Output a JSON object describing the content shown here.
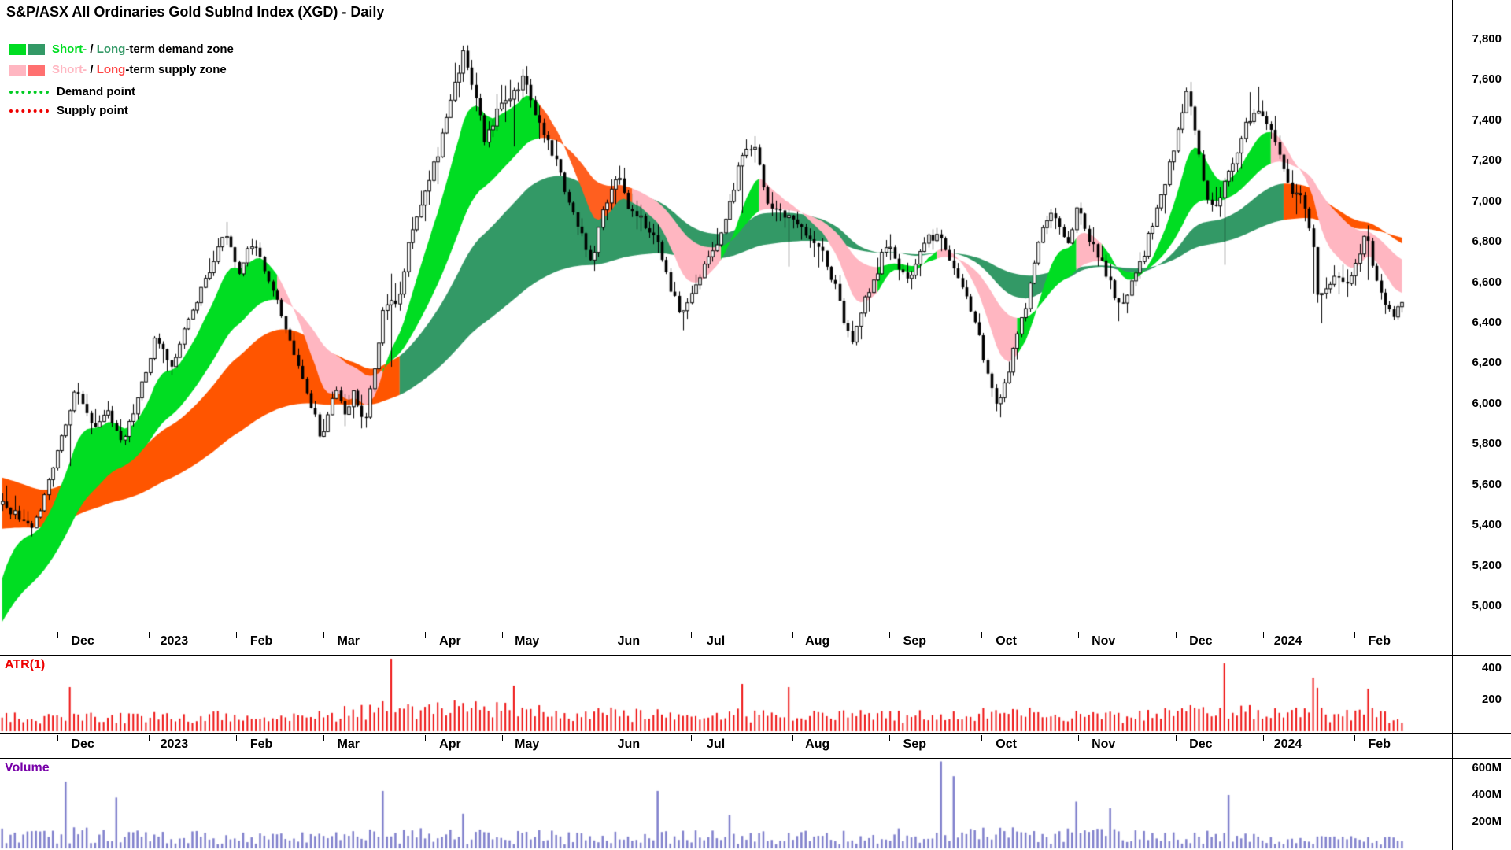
{
  "legend": {
    "demand": {
      "short": "Short-",
      "sep": " / ",
      "long": "Long",
      "rest": "-term demand zone"
    },
    "supply": {
      "short": "Short-",
      "sep": " / ",
      "long": "Long",
      "rest": "-term supply zone"
    },
    "demand_point": "Demand point",
    "supply_point": "Supply point"
  },
  "chart_data": {
    "type": "candlestick",
    "title": "S&P/ASX All Ordinaries Gold SubInd Index (XGD) - Daily",
    "panels": {
      "atr_label": "ATR(1)",
      "volume_label": "Volume"
    },
    "x_labels": [
      {
        "label": "Dec",
        "pos": 0.057
      },
      {
        "label": "2023",
        "pos": 0.12
      },
      {
        "label": "Feb",
        "pos": 0.18
      },
      {
        "label": "Mar",
        "pos": 0.24
      },
      {
        "label": "Apr",
        "pos": 0.31
      },
      {
        "label": "May",
        "pos": 0.363
      },
      {
        "label": "Jun",
        "pos": 0.433
      },
      {
        "label": "Jul",
        "pos": 0.493
      },
      {
        "label": "Aug",
        "pos": 0.563
      },
      {
        "label": "Sep",
        "pos": 0.63
      },
      {
        "label": "Oct",
        "pos": 0.693
      },
      {
        "label": "Nov",
        "pos": 0.76
      },
      {
        "label": "Dec",
        "pos": 0.827
      },
      {
        "label": "2024",
        "pos": 0.887
      },
      {
        "label": "Feb",
        "pos": 0.95
      }
    ],
    "y_axis": {
      "min": 5000,
      "max": 7800,
      "step": 200,
      "ticks": [
        {
          "v": 7800,
          "label": "7,800"
        },
        {
          "v": 7600,
          "label": "7,600"
        },
        {
          "v": 7400,
          "label": "7,400"
        },
        {
          "v": 7200,
          "label": "7,200"
        },
        {
          "v": 7000,
          "label": "7,000"
        },
        {
          "v": 6800,
          "label": "6,800"
        },
        {
          "v": 6600,
          "label": "6,600"
        },
        {
          "v": 6400,
          "label": "6,400"
        },
        {
          "v": 6200,
          "label": "6,200"
        },
        {
          "v": 6000,
          "label": "6,000"
        },
        {
          "v": 5800,
          "label": "5,800"
        },
        {
          "v": 5600,
          "label": "5,600"
        },
        {
          "v": 5400,
          "label": "5,400"
        },
        {
          "v": 5200,
          "label": "5,200"
        },
        {
          "v": 5000,
          "label": "5,000"
        }
      ]
    },
    "atr_ticks": [
      {
        "v": 400,
        "label": "400"
      },
      {
        "v": 200,
        "label": "200"
      }
    ],
    "volume_ticks": [
      {
        "v": 600,
        "label": "600M"
      },
      {
        "v": 400,
        "label": "400M"
      },
      {
        "v": 200,
        "label": "200M"
      }
    ],
    "bars": 332,
    "seed": 20240217,
    "data_extent": 0.967,
    "price_anchors": [
      [
        0,
        5500
      ],
      [
        0.014,
        5430
      ],
      [
        0.021,
        5380
      ],
      [
        0.031,
        5560
      ],
      [
        0.041,
        5800
      ],
      [
        0.052,
        6060
      ],
      [
        0.066,
        5880
      ],
      [
        0.076,
        5960
      ],
      [
        0.086,
        5800
      ],
      [
        0.1,
        6100
      ],
      [
        0.11,
        6340
      ],
      [
        0.121,
        6160
      ],
      [
        0.131,
        6400
      ],
      [
        0.148,
        6640
      ],
      [
        0.159,
        6860
      ],
      [
        0.169,
        6650
      ],
      [
        0.178,
        6800
      ],
      [
        0.186,
        6700
      ],
      [
        0.197,
        6500
      ],
      [
        0.207,
        6260
      ],
      [
        0.217,
        6060
      ],
      [
        0.228,
        5830
      ],
      [
        0.238,
        6100
      ],
      [
        0.245,
        5960
      ],
      [
        0.252,
        6060
      ],
      [
        0.259,
        5880
      ],
      [
        0.266,
        6200
      ],
      [
        0.272,
        6460
      ],
      [
        0.283,
        6520
      ],
      [
        0.29,
        6800
      ],
      [
        0.3,
        7000
      ],
      [
        0.31,
        7210
      ],
      [
        0.321,
        7500
      ],
      [
        0.33,
        7730
      ],
      [
        0.338,
        7500
      ],
      [
        0.345,
        7290
      ],
      [
        0.355,
        7450
      ],
      [
        0.366,
        7560
      ],
      [
        0.374,
        7600
      ],
      [
        0.383,
        7390
      ],
      [
        0.392,
        7260
      ],
      [
        0.4,
        7090
      ],
      [
        0.41,
        6880
      ],
      [
        0.421,
        6710
      ],
      [
        0.431,
        7000
      ],
      [
        0.44,
        7110
      ],
      [
        0.448,
        6960
      ],
      [
        0.459,
        6890
      ],
      [
        0.469,
        6790
      ],
      [
        0.479,
        6530
      ],
      [
        0.486,
        6440
      ],
      [
        0.497,
        6620
      ],
      [
        0.507,
        6730
      ],
      [
        0.517,
        6900
      ],
      [
        0.528,
        7240
      ],
      [
        0.537,
        7290
      ],
      [
        0.545,
        7010
      ],
      [
        0.555,
        6940
      ],
      [
        0.566,
        6890
      ],
      [
        0.576,
        6840
      ],
      [
        0.586,
        6740
      ],
      [
        0.595,
        6580
      ],
      [
        0.6,
        6440
      ],
      [
        0.607,
        6300
      ],
      [
        0.617,
        6520
      ],
      [
        0.624,
        6620
      ],
      [
        0.631,
        6800
      ],
      [
        0.638,
        6700
      ],
      [
        0.645,
        6610
      ],
      [
        0.652,
        6660
      ],
      [
        0.659,
        6810
      ],
      [
        0.669,
        6840
      ],
      [
        0.676,
        6700
      ],
      [
        0.683,
        6610
      ],
      [
        0.69,
        6500
      ],
      [
        0.697,
        6340
      ],
      [
        0.703,
        6160
      ],
      [
        0.71,
        6010
      ],
      [
        0.717,
        6110
      ],
      [
        0.724,
        6310
      ],
      [
        0.732,
        6500
      ],
      [
        0.741,
        6800
      ],
      [
        0.748,
        6950
      ],
      [
        0.755,
        6880
      ],
      [
        0.762,
        6800
      ],
      [
        0.768,
        7000
      ],
      [
        0.774,
        6860
      ],
      [
        0.781,
        6750
      ],
      [
        0.788,
        6650
      ],
      [
        0.794,
        6550
      ],
      [
        0.8,
        6480
      ],
      [
        0.807,
        6600
      ],
      [
        0.814,
        6710
      ],
      [
        0.822,
        6900
      ],
      [
        0.831,
        7100
      ],
      [
        0.84,
        7350
      ],
      [
        0.846,
        7540
      ],
      [
        0.853,
        7300
      ],
      [
        0.86,
        7050
      ],
      [
        0.866,
        6950
      ],
      [
        0.872,
        7090
      ],
      [
        0.879,
        7200
      ],
      [
        0.888,
        7360
      ],
      [
        0.895,
        7460
      ],
      [
        0.901,
        7400
      ],
      [
        0.908,
        7300
      ],
      [
        0.915,
        7150
      ],
      [
        0.922,
        7050
      ],
      [
        0.929,
        7000
      ],
      [
        0.936,
        6790
      ],
      [
        0.94,
        6490
      ],
      [
        0.946,
        6560
      ],
      [
        0.953,
        6650
      ],
      [
        0.96,
        6600
      ],
      [
        0.967,
        6700
      ],
      [
        0.974,
        6850
      ],
      [
        0.981,
        6610
      ],
      [
        0.988,
        6500
      ],
      [
        0.993,
        6440
      ],
      [
        1,
        6480
      ]
    ],
    "volatility_anchors": [
      [
        0,
        85
      ],
      [
        0.1,
        80
      ],
      [
        0.15,
        90
      ],
      [
        0.2,
        95
      ],
      [
        0.27,
        120
      ],
      [
        0.33,
        140
      ],
      [
        0.38,
        120
      ],
      [
        0.45,
        100
      ],
      [
        0.55,
        90
      ],
      [
        0.65,
        95
      ],
      [
        0.72,
        100
      ],
      [
        0.8,
        90
      ],
      [
        0.85,
        115
      ],
      [
        0.9,
        120
      ],
      [
        0.95,
        100
      ],
      [
        1,
        85
      ]
    ],
    "atr_spikes": [
      [
        0.048,
        280
      ],
      [
        0.279,
        460
      ],
      [
        0.366,
        290
      ],
      [
        0.528,
        300
      ],
      [
        0.562,
        280
      ],
      [
        0.872,
        430
      ],
      [
        0.938,
        340
      ],
      [
        0.976,
        270
      ]
    ],
    "volume_anchors": [
      [
        0,
        110
      ],
      [
        0.05,
        120
      ],
      [
        0.1,
        95
      ],
      [
        0.2,
        90
      ],
      [
        0.3,
        110
      ],
      [
        0.4,
        95
      ],
      [
        0.5,
        100
      ],
      [
        0.6,
        95
      ],
      [
        0.68,
        120
      ],
      [
        0.75,
        110
      ],
      [
        0.85,
        100
      ],
      [
        0.93,
        80
      ],
      [
        1,
        70
      ]
    ],
    "volume_spikes": [
      [
        0.045,
        500
      ],
      [
        0.083,
        380
      ],
      [
        0.272,
        430
      ],
      [
        0.33,
        260
      ],
      [
        0.468,
        430
      ],
      [
        0.52,
        250
      ],
      [
        0.672,
        650
      ],
      [
        0.679,
        540
      ],
      [
        0.766,
        350
      ],
      [
        0.793,
        300
      ],
      [
        0.876,
        400
      ]
    ],
    "ribbons": {
      "short": {
        "periods": [
          10,
          30
        ],
        "init": [
          5050,
          4880
        ],
        "segments": [
          [
            0.195,
            "demand"
          ],
          [
            0.272,
            "supply"
          ],
          [
            0.385,
            "demand"
          ],
          [
            0.45,
            "supply_strong"
          ],
          [
            0.515,
            "supply"
          ],
          [
            0.542,
            "demand"
          ],
          [
            0.625,
            "supply"
          ],
          [
            0.667,
            "demand"
          ],
          [
            0.725,
            "supply"
          ],
          [
            0.767,
            "demand"
          ],
          [
            0.787,
            "supply"
          ],
          [
            0.905,
            "demand"
          ],
          [
            1,
            "supply"
          ]
        ]
      },
      "long": {
        "periods": [
          50,
          120
        ],
        "init": [
          5640,
          5380
        ],
        "segments": [
          [
            0.285,
            "supply"
          ],
          [
            0.915,
            "demand"
          ],
          [
            1,
            "supply"
          ]
        ]
      }
    },
    "colors": {
      "short_demand": "#00dd22",
      "short_supply": "#ffb6c1",
      "short_supply_strong": "#ff5f1f",
      "long_demand": "#339966",
      "long_supply": "#ff5500",
      "long_supply_legend": "#ff7070",
      "supply_long_text": "#ff4444",
      "demand_point": "#00cc22",
      "supply_point": "#ee0000",
      "atr_bar": "#ee1111",
      "atr_label": "#ee0000",
      "volume_bar": "#8080cc",
      "volume_label": "#7700a8",
      "candle_up": "#ffffff",
      "candle_down": "#000000",
      "axis_text": "#000000"
    }
  }
}
